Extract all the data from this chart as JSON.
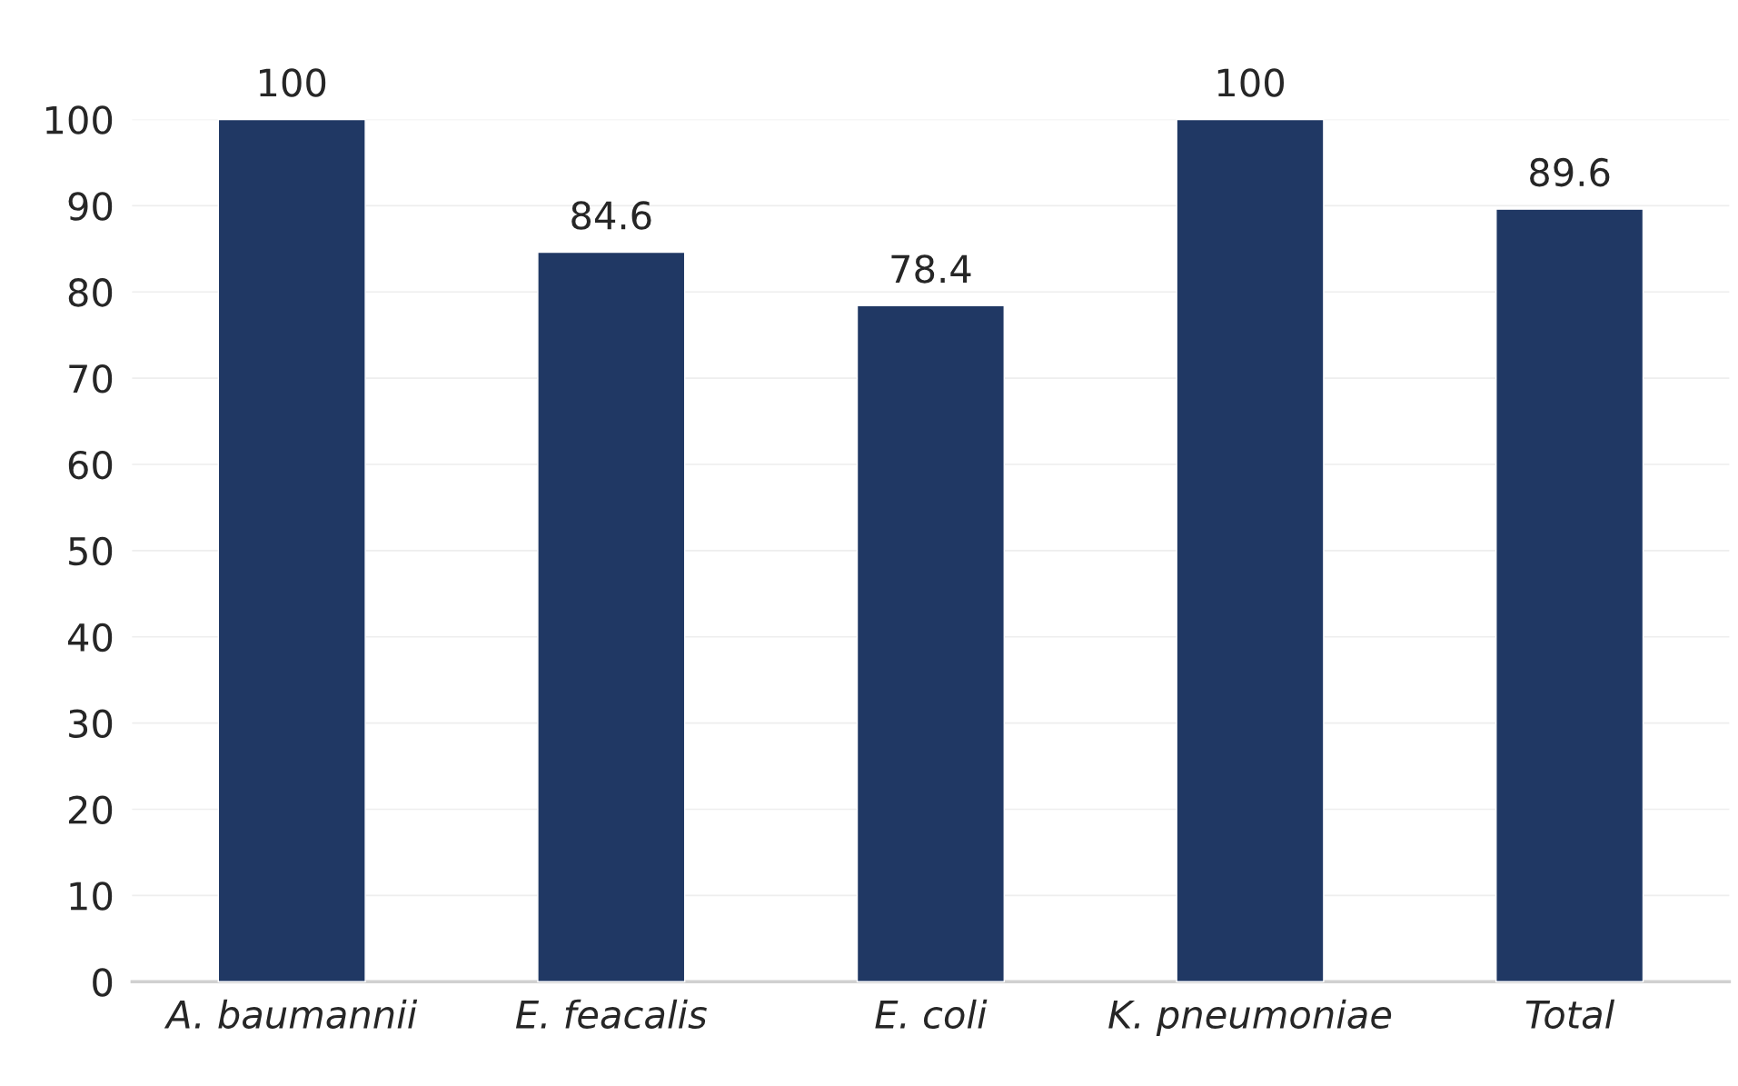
{
  "chart_data": {
    "type": "bar",
    "categories": [
      "A. baumannii",
      "E. feacalis",
      "E. coli",
      "K. pneumoniae",
      "Total"
    ],
    "values": [
      100,
      84.6,
      78.4,
      100,
      89.6
    ],
    "color": "#203864",
    "ylim": [
      0,
      100
    ],
    "yticks": [
      0,
      10,
      20,
      30,
      40,
      50,
      60,
      70,
      80,
      90,
      100
    ],
    "grid": "y",
    "data_labels": true
  }
}
